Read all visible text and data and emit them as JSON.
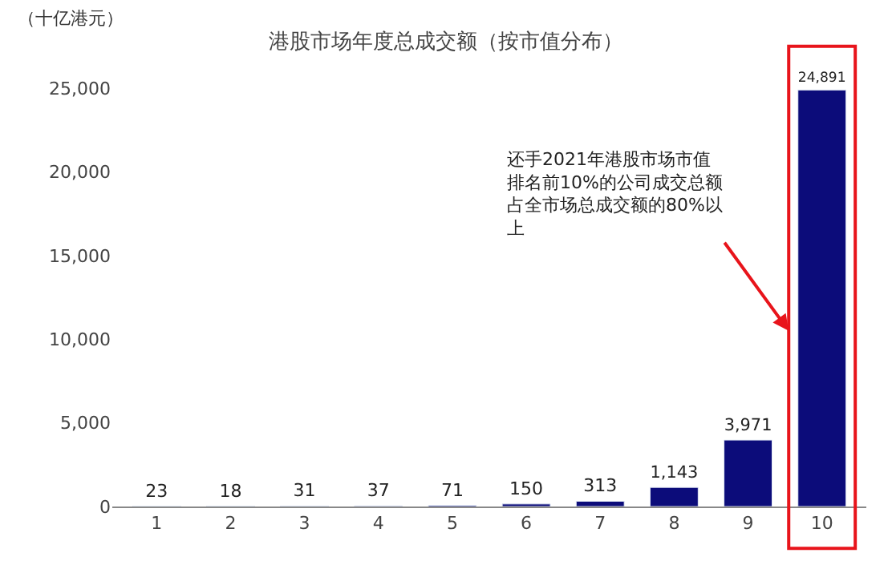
{
  "chart_data": {
    "type": "bar",
    "title": "港股市场年度总成交额（按市值分布）",
    "ylabel": "（十亿港元）",
    "categories": [
      "1",
      "2",
      "3",
      "4",
      "5",
      "6",
      "7",
      "8",
      "9",
      "10"
    ],
    "values": [
      23,
      18,
      31,
      37,
      71,
      150,
      313,
      1143,
      3971,
      24891
    ],
    "value_labels": [
      "23",
      "18",
      "31",
      "37",
      "71",
      "150",
      "313",
      "1,143",
      "3,971",
      "24,891"
    ],
    "color": "#0c0c7a",
    "ylim": [
      0,
      25000
    ],
    "yticks": [
      {
        "value": 0,
        "label": "0"
      },
      {
        "value": 5000,
        "label": "5,000"
      },
      {
        "value": 10000,
        "label": "10,000"
      },
      {
        "value": 15000,
        "label": "15,000"
      },
      {
        "value": 20000,
        "label": "20,000"
      },
      {
        "value": 25000,
        "label": "25,000"
      }
    ],
    "annotations": [
      "还手2021年港股市场市值排名前10%的公司成交总额占全市场总成交额的80%以上"
    ]
  }
}
